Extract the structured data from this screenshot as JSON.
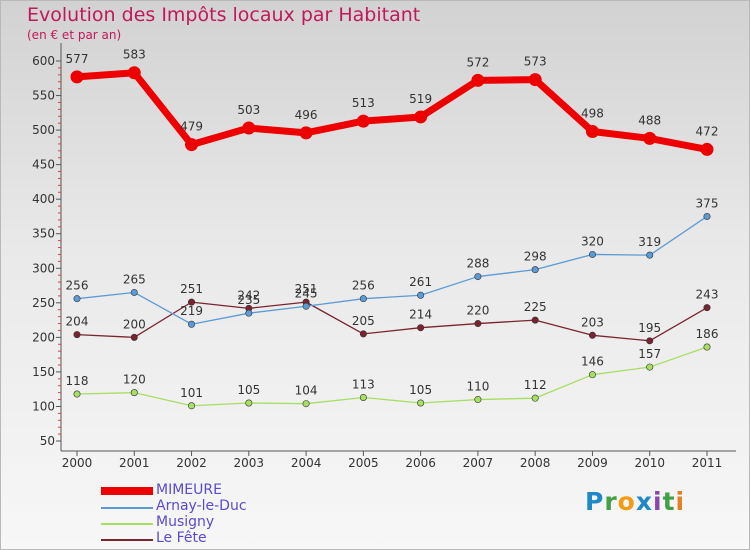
{
  "title": "Evolution des Impôts locaux par Habitant",
  "subtitle": "(en € et par an)",
  "logo_text": "Proxiti",
  "chart_data": {
    "type": "line",
    "title": "Evolution des Impôts locaux par Habitant",
    "subtitle": "(en € et par an)",
    "x": [
      "2000",
      "2001",
      "2002",
      "2003",
      "2004",
      "2005",
      "2006",
      "2007",
      "2008",
      "2009",
      "2010",
      "2011"
    ],
    "ylim": [
      50,
      600
    ],
    "yticks": [
      50,
      100,
      150,
      200,
      250,
      300,
      350,
      400,
      450,
      500,
      550,
      600
    ],
    "grid": false,
    "legend_placement": "bottom-left",
    "series": [
      {
        "name": "MIMEURE",
        "color": "#ee0000",
        "values": [
          577,
          583,
          479,
          503,
          496,
          513,
          519,
          572,
          573,
          498,
          488,
          472
        ]
      },
      {
        "name": "Arnay-le-Duc",
        "color": "#5b9bd5",
        "values": [
          256,
          265,
          219,
          235,
          245,
          256,
          261,
          288,
          298,
          320,
          319,
          375
        ]
      },
      {
        "name": "Musigny",
        "color": "#a6df62",
        "values": [
          118,
          120,
          101,
          105,
          104,
          113,
          105,
          110,
          112,
          146,
          157,
          186
        ]
      },
      {
        "name": "Le Fête",
        "color": "#7a2430",
        "values": [
          204,
          200,
          251,
          242,
          251,
          205,
          214,
          220,
          225,
          203,
          195,
          243
        ]
      }
    ]
  }
}
